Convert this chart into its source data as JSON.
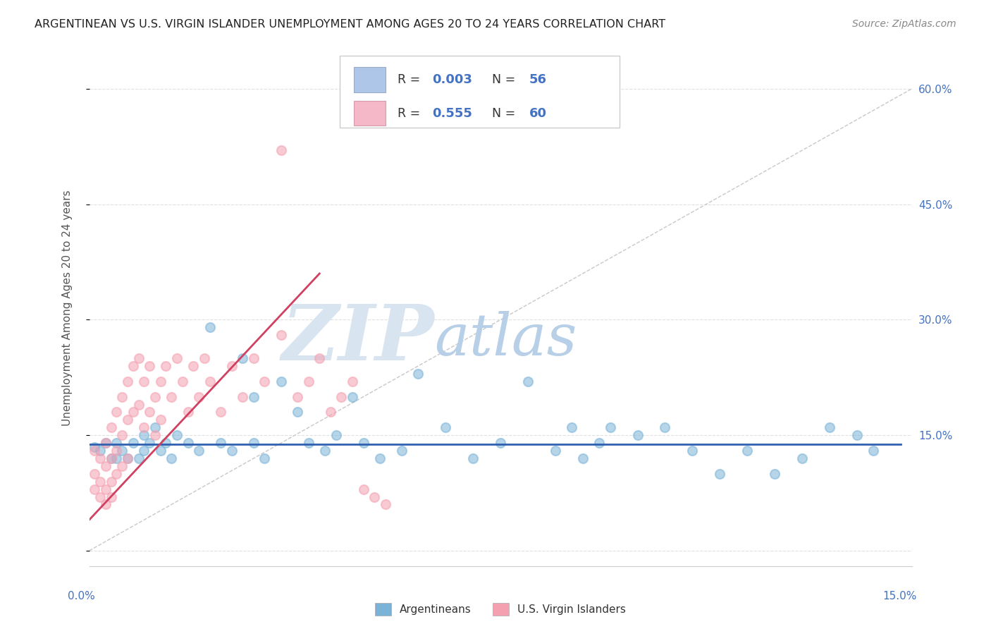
{
  "title": "ARGENTINEAN VS U.S. VIRGIN ISLANDER UNEMPLOYMENT AMONG AGES 20 TO 24 YEARS CORRELATION CHART",
  "source": "Source: ZipAtlas.com",
  "xlim": [
    0.0,
    0.15
  ],
  "ylim": [
    -0.02,
    0.65
  ],
  "plot_ylim": [
    0.0,
    0.65
  ],
  "yticks": [
    0.0,
    0.15,
    0.3,
    0.45,
    0.6
  ],
  "ytick_labels": [
    "",
    "15.0%",
    "30.0%",
    "45.0%",
    "60.0%"
  ],
  "watermark_zip": "ZIP",
  "watermark_atlas": "atlas",
  "watermark_zip_color": "#d8e4f0",
  "watermark_atlas_color": "#b8cfe8",
  "argentinean_color": "#7ab3d8",
  "virgin_islander_color": "#f4a0b0",
  "trend_argentinean_color": "#3060b0",
  "trend_virgin_islander_color": "#d04060",
  "ref_line_color": "#c8c8c8",
  "grid_color": "#e0e0e0",
  "background_color": "#ffffff",
  "axis_label": "Unemployment Among Ages 20 to 24 years",
  "legend_box_color": "#aec6e8",
  "legend_box_color2": "#f4b8c8",
  "legend_r1": "0.003",
  "legend_n1": "56",
  "legend_r2": "0.555",
  "legend_n2": "60",
  "arg_trend_x0": 0.0,
  "arg_trend_x1": 0.148,
  "arg_trend_y0": 0.138,
  "arg_trend_y1": 0.138,
  "vi_trend_x0": 0.0,
  "vi_trend_x1": 0.042,
  "vi_trend_y0": 0.04,
  "vi_trend_y1": 0.36,
  "argentinean_x": [
    0.001,
    0.002,
    0.003,
    0.004,
    0.005,
    0.005,
    0.006,
    0.007,
    0.008,
    0.009,
    0.01,
    0.01,
    0.011,
    0.012,
    0.013,
    0.014,
    0.015,
    0.016,
    0.018,
    0.02,
    0.022,
    0.024,
    0.026,
    0.028,
    0.03,
    0.03,
    0.032,
    0.035,
    0.038,
    0.04,
    0.043,
    0.045,
    0.048,
    0.05,
    0.053,
    0.057,
    0.06,
    0.065,
    0.07,
    0.075,
    0.08,
    0.085,
    0.088,
    0.09,
    0.093,
    0.095,
    0.1,
    0.105,
    0.11,
    0.115,
    0.12,
    0.125,
    0.13,
    0.135,
    0.14,
    0.143
  ],
  "argentinean_y": [
    0.135,
    0.13,
    0.14,
    0.12,
    0.14,
    0.12,
    0.13,
    0.12,
    0.14,
    0.12,
    0.13,
    0.15,
    0.14,
    0.16,
    0.13,
    0.14,
    0.12,
    0.15,
    0.14,
    0.13,
    0.29,
    0.14,
    0.13,
    0.25,
    0.2,
    0.14,
    0.12,
    0.22,
    0.18,
    0.14,
    0.13,
    0.15,
    0.2,
    0.14,
    0.12,
    0.13,
    0.23,
    0.16,
    0.12,
    0.14,
    0.22,
    0.13,
    0.16,
    0.12,
    0.14,
    0.16,
    0.15,
    0.16,
    0.13,
    0.1,
    0.13,
    0.1,
    0.12,
    0.16,
    0.15,
    0.13
  ],
  "virgin_islander_x": [
    0.001,
    0.001,
    0.001,
    0.002,
    0.002,
    0.002,
    0.003,
    0.003,
    0.003,
    0.003,
    0.004,
    0.004,
    0.004,
    0.004,
    0.005,
    0.005,
    0.005,
    0.006,
    0.006,
    0.006,
    0.007,
    0.007,
    0.007,
    0.008,
    0.008,
    0.009,
    0.009,
    0.01,
    0.01,
    0.011,
    0.011,
    0.012,
    0.012,
    0.013,
    0.013,
    0.014,
    0.015,
    0.016,
    0.017,
    0.018,
    0.019,
    0.02,
    0.021,
    0.022,
    0.024,
    0.026,
    0.028,
    0.03,
    0.032,
    0.035,
    0.035,
    0.038,
    0.04,
    0.042,
    0.044,
    0.046,
    0.048,
    0.05,
    0.052,
    0.054
  ],
  "virgin_islander_y": [
    0.13,
    0.1,
    0.08,
    0.12,
    0.09,
    0.07,
    0.14,
    0.11,
    0.08,
    0.06,
    0.16,
    0.12,
    0.09,
    0.07,
    0.18,
    0.13,
    0.1,
    0.2,
    0.15,
    0.11,
    0.22,
    0.17,
    0.12,
    0.24,
    0.18,
    0.25,
    0.19,
    0.22,
    0.16,
    0.24,
    0.18,
    0.2,
    0.15,
    0.22,
    0.17,
    0.24,
    0.2,
    0.25,
    0.22,
    0.18,
    0.24,
    0.2,
    0.25,
    0.22,
    0.18,
    0.24,
    0.2,
    0.25,
    0.22,
    0.28,
    0.52,
    0.2,
    0.22,
    0.25,
    0.18,
    0.2,
    0.22,
    0.08,
    0.07,
    0.06
  ]
}
